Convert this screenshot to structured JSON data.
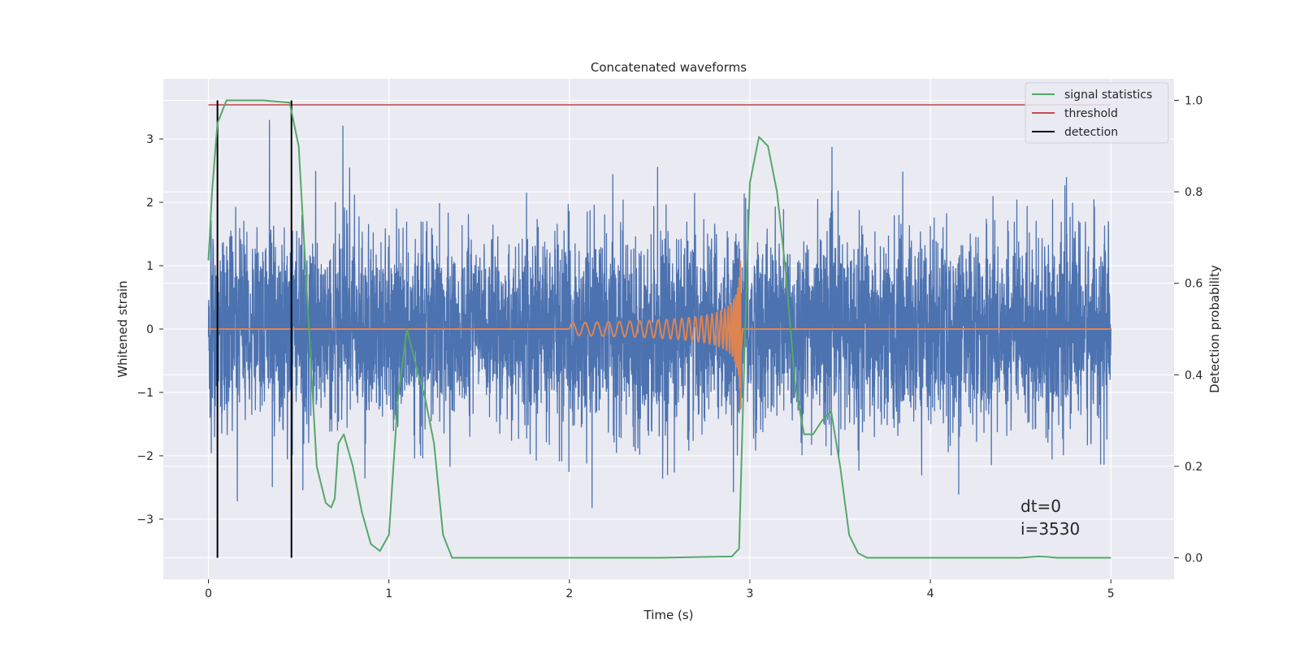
{
  "chart_data": {
    "type": "line",
    "title": "Concatenated waveforms",
    "xlabel": "Time (s)",
    "ylabel": "Whitened strain",
    "y2label": "Detection probability",
    "xlim": [
      -0.25,
      5.35
    ],
    "ylim": [
      -3.95,
      3.95
    ],
    "y2lim": [
      -0.047,
      1.047
    ],
    "xticks": [
      0,
      1,
      2,
      3,
      4,
      5
    ],
    "yticks": [
      -3,
      -2,
      -1,
      0,
      1,
      2,
      3
    ],
    "y2ticks": [
      0.0,
      0.2,
      0.4,
      0.6,
      0.8,
      1.0
    ],
    "xtick_labels": [
      "0",
      "1",
      "2",
      "3",
      "4",
      "5"
    ],
    "ytick_labels": [
      "−3",
      "−2",
      "−1",
      "0",
      "1",
      "2",
      "3"
    ],
    "y2tick_labels": [
      "0.0",
      "0.2",
      "0.4",
      "0.6",
      "0.8",
      "1.0"
    ],
    "grid": true,
    "legend_position": "top-right",
    "legend": [
      {
        "label": "signal statistics",
        "color": "#55a868"
      },
      {
        "label": "threshold",
        "color": "#c44e52"
      },
      {
        "label": "detection",
        "color": "#000000"
      }
    ],
    "annotations": [
      "dt=0",
      "i=3530"
    ],
    "series": [
      {
        "kind": "noise",
        "axis": "left",
        "color": "#4c72b0",
        "x_range": [
          0,
          5
        ],
        "typical_amplitude": 1.5,
        "peak_amplitude": 3.5
      },
      {
        "kind": "chirp",
        "axis": "left",
        "color": "#dd8452",
        "x_range": [
          0,
          5
        ],
        "chirp_start": 2.0,
        "chirp_end": 2.95,
        "peak_amplitude": 1.45
      },
      {
        "name": "signal statistics",
        "axis": "right",
        "color": "#55a868",
        "x": [
          0,
          0.02,
          0.05,
          0.1,
          0.2,
          0.3,
          0.45,
          0.5,
          0.55,
          0.6,
          0.65,
          0.68,
          0.7,
          0.72,
          0.75,
          0.8,
          0.85,
          0.9,
          0.95,
          1.0,
          1.05,
          1.1,
          1.15,
          1.2,
          1.25,
          1.3,
          1.35,
          1.4,
          1.5,
          2.0,
          2.5,
          2.9,
          2.94,
          2.97,
          3.0,
          3.05,
          3.1,
          3.15,
          3.2,
          3.25,
          3.3,
          3.35,
          3.4,
          3.45,
          3.5,
          3.55,
          3.6,
          3.65,
          4.0,
          4.5,
          4.6,
          4.65,
          4.7,
          5.0
        ],
        "y": [
          0.65,
          0.8,
          0.95,
          1.0,
          1.0,
          1.0,
          0.995,
          0.9,
          0.55,
          0.2,
          0.12,
          0.11,
          0.13,
          0.25,
          0.27,
          0.2,
          0.1,
          0.03,
          0.015,
          0.05,
          0.35,
          0.5,
          0.42,
          0.35,
          0.25,
          0.05,
          0.0,
          0.0,
          0.0,
          0.0,
          0.0,
          0.003,
          0.02,
          0.45,
          0.82,
          0.92,
          0.9,
          0.8,
          0.62,
          0.38,
          0.27,
          0.27,
          0.3,
          0.32,
          0.2,
          0.05,
          0.01,
          0.0,
          0.0,
          0.0,
          0.003,
          0.002,
          0.0,
          0.0
        ]
      },
      {
        "name": "threshold",
        "axis": "right",
        "color": "#c44e52",
        "x": [
          0,
          5
        ],
        "y": [
          0.99,
          0.99
        ]
      },
      {
        "name": "detection",
        "axis": "right",
        "color": "#000000",
        "lines_at_x": [
          0.05,
          0.46
        ],
        "y_range": [
          0,
          1
        ]
      }
    ]
  }
}
